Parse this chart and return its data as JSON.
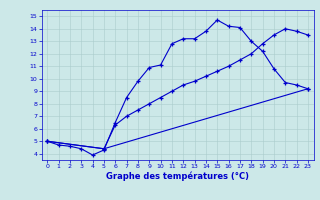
{
  "xlabel": "Graphe des températures (°C)",
  "bg_color": "#cce8e8",
  "line_color": "#0000cc",
  "grid_color": "#aacccc",
  "xlim": [
    -0.5,
    23.5
  ],
  "ylim": [
    3.5,
    15.5
  ],
  "xticks": [
    0,
    1,
    2,
    3,
    4,
    5,
    6,
    7,
    8,
    9,
    10,
    11,
    12,
    13,
    14,
    15,
    16,
    17,
    18,
    19,
    20,
    21,
    22,
    23
  ],
  "yticks": [
    4,
    5,
    6,
    7,
    8,
    9,
    10,
    11,
    12,
    13,
    14,
    15
  ],
  "series": [
    {
      "x": [
        0,
        1,
        2,
        3,
        4,
        5,
        6,
        7,
        8,
        9,
        10,
        11,
        12,
        13,
        14,
        15,
        16,
        17,
        18,
        19,
        20,
        21,
        22,
        23
      ],
      "y": [
        5.0,
        4.7,
        4.6,
        4.4,
        3.9,
        4.3,
        6.5,
        8.5,
        9.8,
        10.9,
        11.1,
        12.8,
        13.2,
        13.2,
        13.8,
        14.7,
        14.2,
        14.1,
        13.0,
        12.2,
        10.8,
        9.7,
        9.5,
        9.2
      ]
    },
    {
      "x": [
        0,
        5,
        6,
        7,
        8,
        9,
        10,
        11,
        12,
        13,
        14,
        15,
        16,
        17,
        18,
        19,
        20,
        21,
        22,
        23
      ],
      "y": [
        5.0,
        4.4,
        6.3,
        7.0,
        7.5,
        8.0,
        8.5,
        9.0,
        9.5,
        9.8,
        10.2,
        10.6,
        11.0,
        11.5,
        12.0,
        12.8,
        13.5,
        14.0,
        13.8,
        13.5
      ]
    },
    {
      "x": [
        0,
        5,
        23
      ],
      "y": [
        5.0,
        4.4,
        9.2
      ]
    }
  ]
}
